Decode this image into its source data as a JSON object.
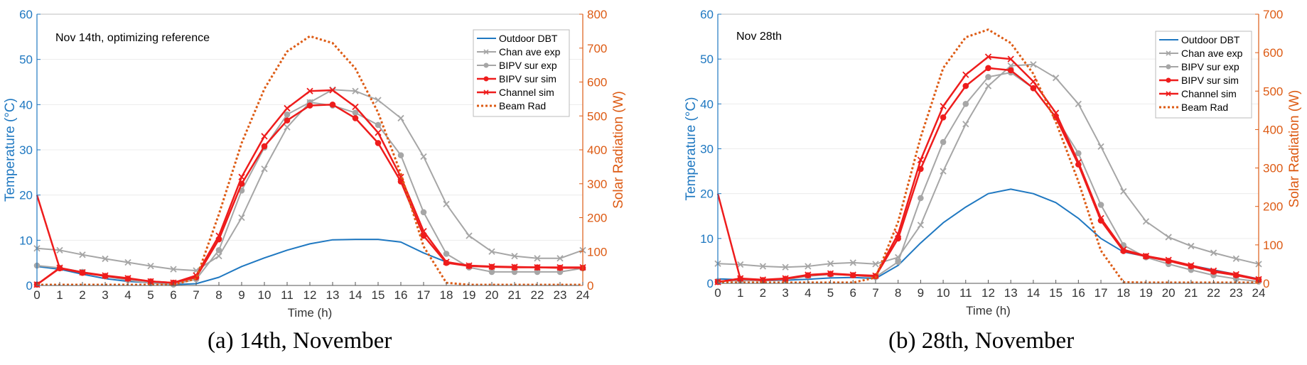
{
  "colors": {
    "outdoor": "#1f78c1",
    "chan_exp": "#a6a6a6",
    "bipv_exp": "#a6a6a6",
    "bipv_sim": "#ee1c1c",
    "chan_sim": "#ee1c1c",
    "beam": "#dd5b14",
    "left_axis": "#1f78c1",
    "right_axis": "#dd5b14",
    "grid": "#ececec"
  },
  "chart_data": [
    {
      "type": "line",
      "caption": "(a) 14th, November",
      "note": "Nov 14th, optimizing reference",
      "xlabel": "Time (h)",
      "ylabel": "Temperature (°C)",
      "y2label": "Solar Radiation (W)",
      "xlim": [
        0,
        24
      ],
      "ylim": [
        0,
        60
      ],
      "y2lim": [
        0,
        800
      ],
      "x": [
        0,
        1,
        2,
        3,
        4,
        5,
        6,
        7,
        8,
        9,
        10,
        11,
        12,
        13,
        14,
        15,
        16,
        17,
        18,
        19,
        20,
        21,
        22,
        23,
        24
      ],
      "xticks": [
        "0",
        "1",
        "2",
        "3",
        "4",
        "5",
        "6",
        "7",
        "8",
        "9",
        "10",
        "11",
        "12",
        "13",
        "14",
        "15",
        "16",
        "17",
        "18",
        "19",
        "20",
        "21",
        "22",
        "23",
        "24"
      ],
      "yticks": [
        "0",
        "10",
        "20",
        "30",
        "40",
        "50",
        "60"
      ],
      "y2ticks": [
        "0",
        "100",
        "200",
        "300",
        "400",
        "500",
        "600",
        "700",
        "800"
      ],
      "legend": [
        "Outdoor DBT",
        "Chan ave exp",
        "BIPV sur exp",
        "BIPV sur sim",
        "Channel sim",
        "Beam Rad"
      ],
      "series": [
        {
          "name": "Outdoor DBT",
          "values": [
            4.2,
            3.6,
            2.5,
            1.5,
            0.9,
            0.6,
            0.2,
            0.4,
            1.8,
            4.2,
            6.1,
            7.8,
            9.2,
            10.1,
            10.2,
            10.2,
            9.6,
            7.2,
            5.2,
            4.4,
            4.2,
            4.1,
            4.0,
            4.0,
            4.0
          ]
        },
        {
          "name": "Chan ave exp",
          "values": [
            8.2,
            7.8,
            6.8,
            5.9,
            5.1,
            4.3,
            3.6,
            3.3,
            6.5,
            15.0,
            25.8,
            35.0,
            40.5,
            43.3,
            43.0,
            41.0,
            37.0,
            28.5,
            18.0,
            11.0,
            7.5,
            6.5,
            6.0,
            6.0,
            7.8
          ]
        },
        {
          "name": "BIPV sur exp",
          "values": [
            4.4,
            3.9,
            3.0,
            2.0,
            1.2,
            0.5,
            0.2,
            1.4,
            7.8,
            21.0,
            30.5,
            37.8,
            40.5,
            39.8,
            38.2,
            35.5,
            28.8,
            16.2,
            7.0,
            4.0,
            3.0,
            3.0,
            3.0,
            3.0,
            3.8
          ]
        },
        {
          "name": "BIPV sur sim",
          "values": [
            0.2,
            3.8,
            2.8,
            2.1,
            1.5,
            0.9,
            0.6,
            1.8,
            10.2,
            22.5,
            30.8,
            36.5,
            39.8,
            40.0,
            37.0,
            31.5,
            23.0,
            11.0,
            5.0,
            4.3,
            4.1,
            4.0,
            4.0,
            3.9,
            3.9
          ]
        },
        {
          "name": "Channel sim",
          "values": [
            0.2,
            3.9,
            2.9,
            2.2,
            1.6,
            0.9,
            0.6,
            2.2,
            11.0,
            24.0,
            33.0,
            39.2,
            43.0,
            43.2,
            39.5,
            33.8,
            24.0,
            12.0,
            5.2,
            4.4,
            4.2,
            4.1,
            4.0,
            4.0,
            4.0
          ]
        },
        {
          "name": "Beam Rad",
          "axis": "right",
          "values": [
            2,
            2,
            2,
            2,
            2,
            2,
            2,
            20,
            210,
            420,
            580,
            690,
            735,
            715,
            640,
            510,
            330,
            115,
            8,
            2,
            2,
            2,
            2,
            2,
            2
          ]
        }
      ],
      "spike": {
        "series": "BIPV sur sim",
        "x": [
          0,
          0
        ],
        "values": [
          20,
          0.2
        ]
      }
    },
    {
      "type": "line",
      "caption": "(b) 28th, November",
      "note": "Nov 28th",
      "xlabel": "Time (h)",
      "ylabel": "Temperature (°C)",
      "y2label": "Solar Radiation (W)",
      "xlim": [
        0,
        24
      ],
      "ylim": [
        0,
        60
      ],
      "y2lim": [
        0,
        700
      ],
      "x": [
        0,
        1,
        2,
        3,
        4,
        5,
        6,
        7,
        8,
        9,
        10,
        11,
        12,
        13,
        14,
        15,
        16,
        17,
        18,
        19,
        20,
        21,
        22,
        23,
        24
      ],
      "xticks": [
        "0",
        "1",
        "2",
        "3",
        "4",
        "5",
        "6",
        "7",
        "8",
        "9",
        "10",
        "11",
        "12",
        "13",
        "14",
        "15",
        "16",
        "17",
        "18",
        "19",
        "20",
        "21",
        "22",
        "23",
        "24"
      ],
      "yticks": [
        "0",
        "10",
        "20",
        "30",
        "40",
        "50",
        "60"
      ],
      "y2ticks": [
        "0",
        "100",
        "200",
        "300",
        "400",
        "500",
        "600",
        "700"
      ],
      "legend": [
        "Outdoor DBT",
        "Chan ave exp",
        "BIPV sur exp",
        "BIPV sur sim",
        "Channel sim",
        "Beam Rad"
      ],
      "series": [
        {
          "name": "Outdoor DBT",
          "values": [
            1.0,
            0.8,
            0.6,
            0.7,
            0.9,
            1.2,
            1.3,
            1.1,
            4.0,
            9.0,
            13.5,
            17.0,
            20.0,
            21.0,
            20.0,
            18.0,
            14.5,
            10.0,
            7.0,
            6.0,
            5.0,
            4.0,
            3.0,
            2.0,
            1.0
          ]
        },
        {
          "name": "Chan ave exp",
          "values": [
            4.4,
            4.2,
            3.8,
            3.6,
            3.8,
            4.4,
            4.6,
            4.3,
            5.8,
            13.0,
            25.0,
            35.5,
            44.0,
            48.5,
            48.8,
            45.8,
            40.0,
            30.5,
            20.5,
            13.8,
            10.3,
            8.3,
            6.8,
            5.5,
            4.3
          ]
        },
        {
          "name": "BIPV sur exp",
          "values": [
            0.5,
            0.6,
            0.6,
            0.8,
            1.6,
            2.0,
            1.8,
            1.4,
            4.8,
            19.0,
            31.5,
            40.0,
            46.0,
            47.0,
            43.5,
            37.0,
            29.0,
            17.5,
            8.5,
            5.8,
            4.3,
            3.0,
            1.8,
            1.0,
            0.4
          ]
        },
        {
          "name": "BIPV sur sim",
          "values": [
            0.3,
            1.0,
            0.7,
            1.0,
            1.8,
            2.1,
            1.8,
            1.6,
            10.0,
            25.5,
            37.0,
            44.0,
            48.0,
            47.5,
            43.5,
            37.0,
            26.5,
            14.0,
            7.2,
            6.0,
            5.0,
            3.8,
            2.6,
            1.8,
            0.8
          ]
        },
        {
          "name": "Channel sim",
          "values": [
            0.3,
            1.1,
            0.8,
            1.1,
            1.9,
            2.2,
            1.9,
            1.7,
            11.0,
            27.5,
            39.5,
            46.5,
            50.5,
            50.0,
            45.0,
            38.0,
            27.0,
            14.5,
            7.5,
            6.1,
            5.2,
            4.0,
            2.8,
            2.0,
            0.9
          ]
        },
        {
          "name": "Beam Rad",
          "axis": "right",
          "values": [
            2,
            2,
            2,
            2,
            2,
            2,
            2,
            15,
            160,
            380,
            560,
            640,
            660,
            625,
            545,
            420,
            265,
            85,
            3,
            2,
            2,
            2,
            2,
            2,
            2
          ]
        }
      ],
      "spike": {
        "series": "BIPV sur sim",
        "x": [
          0,
          0
        ],
        "values": [
          20,
          0.3
        ]
      }
    }
  ]
}
